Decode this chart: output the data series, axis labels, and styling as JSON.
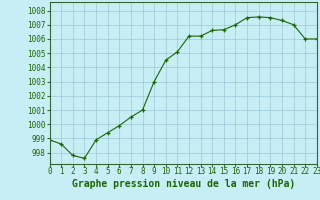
{
  "hours": [
    0,
    1,
    2,
    3,
    4,
    5,
    6,
    7,
    8,
    9,
    10,
    11,
    12,
    13,
    14,
    15,
    16,
    17,
    18,
    19,
    20,
    21,
    22,
    23
  ],
  "pressure": [
    998.9,
    998.6,
    997.8,
    997.6,
    998.9,
    999.4,
    999.9,
    1000.5,
    1001.0,
    1003.0,
    1004.5,
    1005.1,
    1006.2,
    1006.2,
    1006.6,
    1006.65,
    1007.0,
    1007.5,
    1007.55,
    1007.5,
    1007.3,
    1007.0,
    1006.0,
    1006.0
  ],
  "line_color": "#1a6600",
  "marker_color": "#1a6600",
  "bg_color": "#c8eef5",
  "grid_color": "#9dc8d8",
  "ylabel_ticks": [
    998,
    999,
    1000,
    1001,
    1002,
    1003,
    1004,
    1005,
    1006,
    1007,
    1008
  ],
  "ylim": [
    997.2,
    1008.6
  ],
  "xlim": [
    0,
    23
  ],
  "tick_label_color": "#1a6600",
  "xlabel_color": "#1a6600",
  "xlabel": "Graphe pression niveau de la mer (hPa)",
  "xlabel_fontsize": 7,
  "tick_fontsize": 5.5,
  "border_color": "#336633"
}
